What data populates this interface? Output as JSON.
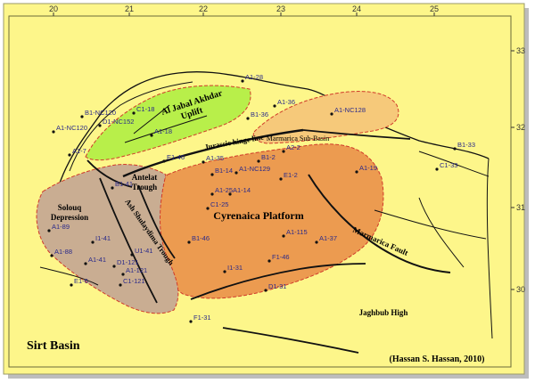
{
  "colors": {
    "paper": "#fdf68a",
    "uplift": "#b8ef4a",
    "marmarica_basin": "#f6c97a",
    "platform": "#ec9b50",
    "depression": "#c9ad92",
    "boundary": "#d03a2a",
    "line": "#111111"
  },
  "lon_ticks": [
    "20",
    "21",
    "22",
    "23",
    "24",
    "25"
  ],
  "lat_ticks": [
    "33",
    "32",
    "31",
    "30"
  ],
  "regions": {
    "uplift_line1": "Al Jabal Akhdar",
    "uplift_line2": "Uplift",
    "marmarica_basin": "Marmarica Sub-Basin",
    "platform": "Cyrenaica Platform",
    "depression_line1": "Solouq",
    "depression_line2": "Depression",
    "antelat_line1": "Antelat",
    "antelat_line2": "Trough"
  },
  "structures": {
    "jurassic_hinge": "Jurassic hinge line",
    "shulaydima": "Ash Shulaydima Trough",
    "marmarica_fault": "Marmarica Fault",
    "jaghbub": "Jaghbub High"
  },
  "wells": [
    "A1-28",
    "C1-18",
    "B1-NC120",
    "D1-NC152",
    "A1-NC120",
    "A1-18",
    "B1-36",
    "A1-36",
    "A1-NC128",
    "A1-7",
    "E1-46",
    "A1-35",
    "A2-2",
    "B1-2",
    "A1-NC129",
    "B1-33",
    "A1-19",
    "C1-33",
    "B1-14",
    "E1-2",
    "B1-41",
    "A1-25",
    "A1-14",
    "C1-25",
    "A1-89",
    "I1-41",
    "B1-46",
    "A1-115",
    "A1-37",
    "A1-88",
    "U1-41",
    "A1-41",
    "D1-121",
    "F1-46",
    "A1-121",
    "I1-31",
    "E1-6",
    "C1-121",
    "D1-31",
    "F1-31"
  ],
  "basin_label": "Sirt Basin",
  "credit": "(Hassan S. Hassan, 2010)"
}
